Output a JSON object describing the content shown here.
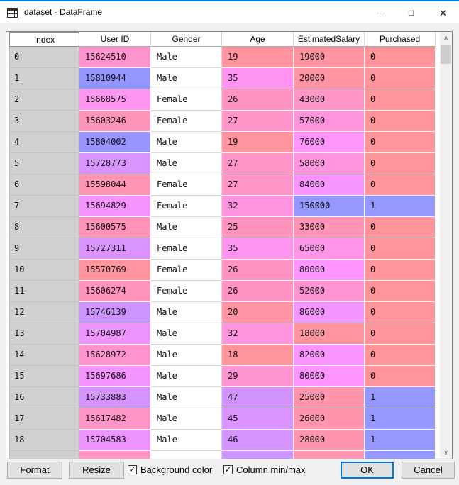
{
  "window": {
    "title": "dataset - DataFrame",
    "controls": {
      "minimize_glyph": "−",
      "maximize_glyph": "□",
      "close_glyph": "✕"
    }
  },
  "colors": {
    "accent_blue": "#0078d7",
    "index_column_bg": "#d0d0d0",
    "min_value_bg": "#FF949A",
    "max_value_bg": "#9498FF"
  },
  "icons": {
    "app_icon": "table-grid-icon",
    "checkmark": "✓",
    "scroll_up_glyph": "∧",
    "scroll_down_glyph": "∨"
  },
  "table": {
    "columns": [
      "Index",
      "User ID",
      "Gender",
      "Age",
      "EstimatedSalary",
      "Purchased"
    ],
    "rows": [
      {
        "index": "0",
        "cells": [
          {
            "text": "15624510",
            "bg": "#FF94CC"
          },
          {
            "text": "Male",
            "bg": "#FFFFFF"
          },
          {
            "text": "19",
            "bg": "#FF949F"
          },
          {
            "text": "19000",
            "bg": "#FF94A1"
          },
          {
            "text": "0",
            "bg": "#FF949A"
          }
        ]
      },
      {
        "index": "1",
        "cells": [
          {
            "text": "15810944",
            "bg": "#9495FF"
          },
          {
            "text": "Male",
            "bg": "#FFFFFF"
          },
          {
            "text": "35",
            "bg": "#FF94F0"
          },
          {
            "text": "20000",
            "bg": "#FF94A2"
          },
          {
            "text": "0",
            "bg": "#FF949A"
          }
        ]
      },
      {
        "index": "2",
        "cells": [
          {
            "text": "15668575",
            "bg": "#FF94F1"
          },
          {
            "text": "Female",
            "bg": "#FFFFFF"
          },
          {
            "text": "26",
            "bg": "#FF94C3"
          },
          {
            "text": "43000",
            "bg": "#FF94C6"
          },
          {
            "text": "0",
            "bg": "#FF949A"
          }
        ]
      },
      {
        "index": "3",
        "cells": [
          {
            "text": "15603246",
            "bg": "#FF94BA"
          },
          {
            "text": "Female",
            "bg": "#FFFFFF"
          },
          {
            "text": "27",
            "bg": "#FF94C8"
          },
          {
            "text": "57000",
            "bg": "#FF94DC"
          },
          {
            "text": "0",
            "bg": "#FF949A"
          }
        ]
      },
      {
        "index": "4",
        "cells": [
          {
            "text": "15804002",
            "bg": "#9994FF"
          },
          {
            "text": "Male",
            "bg": "#FFFFFF"
          },
          {
            "text": "19",
            "bg": "#FF949F"
          },
          {
            "text": "76000",
            "bg": "#FF94FA"
          },
          {
            "text": "0",
            "bg": "#FF949A"
          }
        ]
      },
      {
        "index": "5",
        "cells": [
          {
            "text": "15728773",
            "bg": "#D994FF"
          },
          {
            "text": "Male",
            "bg": "#FFFFFF"
          },
          {
            "text": "27",
            "bg": "#FF94C8"
          },
          {
            "text": "58000",
            "bg": "#FF94DE"
          },
          {
            "text": "0",
            "bg": "#FF949A"
          }
        ]
      },
      {
        "index": "6",
        "cells": [
          {
            "text": "15598044",
            "bg": "#FF94B5"
          },
          {
            "text": "Female",
            "bg": "#FFFFFF"
          },
          {
            "text": "27",
            "bg": "#FF94C8"
          },
          {
            "text": "84000",
            "bg": "#F794FF"
          },
          {
            "text": "0",
            "bg": "#FF949A"
          }
        ]
      },
      {
        "index": "7",
        "cells": [
          {
            "text": "15694829",
            "bg": "#F694FF"
          },
          {
            "text": "Female",
            "bg": "#FFFFFF"
          },
          {
            "text": "32",
            "bg": "#FF94E1"
          },
          {
            "text": "150000",
            "bg": "#9498FF"
          },
          {
            "text": "1",
            "bg": "#9498FF"
          }
        ]
      },
      {
        "index": "8",
        "cells": [
          {
            "text": "15600575",
            "bg": "#FF94B7"
          },
          {
            "text": "Male",
            "bg": "#FFFFFF"
          },
          {
            "text": "25",
            "bg": "#FF94BE"
          },
          {
            "text": "33000",
            "bg": "#FF94B7"
          },
          {
            "text": "0",
            "bg": "#FF949A"
          }
        ]
      },
      {
        "index": "9",
        "cells": [
          {
            "text": "15727311",
            "bg": "#DB94FF"
          },
          {
            "text": "Female",
            "bg": "#FFFFFF"
          },
          {
            "text": "35",
            "bg": "#FF94F0"
          },
          {
            "text": "65000",
            "bg": "#FF94E9"
          },
          {
            "text": "0",
            "bg": "#FF949A"
          }
        ]
      },
      {
        "index": "10",
        "cells": [
          {
            "text": "15570769",
            "bg": "#FF949E"
          },
          {
            "text": "Female",
            "bg": "#FFFFFF"
          },
          {
            "text": "26",
            "bg": "#FF94C3"
          },
          {
            "text": "80000",
            "bg": "#FE94FF"
          },
          {
            "text": "0",
            "bg": "#FF949A"
          }
        ]
      },
      {
        "index": "11",
        "cells": [
          {
            "text": "15606274",
            "bg": "#FF94BC"
          },
          {
            "text": "Female",
            "bg": "#FFFFFF"
          },
          {
            "text": "26",
            "bg": "#FF94C3"
          },
          {
            "text": "52000",
            "bg": "#FF94D4"
          },
          {
            "text": "0",
            "bg": "#FF949A"
          }
        ]
      },
      {
        "index": "12",
        "cells": [
          {
            "text": "15746139",
            "bg": "#CB94FF"
          },
          {
            "text": "Male",
            "bg": "#FFFFFF"
          },
          {
            "text": "20",
            "bg": "#FF94A4"
          },
          {
            "text": "86000",
            "bg": "#F494FF"
          },
          {
            "text": "0",
            "bg": "#FF949A"
          }
        ]
      },
      {
        "index": "13",
        "cells": [
          {
            "text": "15704987",
            "bg": "#EE94FF"
          },
          {
            "text": "Male",
            "bg": "#FFFFFF"
          },
          {
            "text": "32",
            "bg": "#FF94E1"
          },
          {
            "text": "18000",
            "bg": "#FF949F"
          },
          {
            "text": "0",
            "bg": "#FF949A"
          }
        ]
      },
      {
        "index": "14",
        "cells": [
          {
            "text": "15628972",
            "bg": "#FF94CF"
          },
          {
            "text": "Male",
            "bg": "#FFFFFF"
          },
          {
            "text": "18",
            "bg": "#FF949A"
          },
          {
            "text": "82000",
            "bg": "#FA94FF"
          },
          {
            "text": "0",
            "bg": "#FF949A"
          }
        ]
      },
      {
        "index": "15",
        "cells": [
          {
            "text": "15697686",
            "bg": "#F494FF"
          },
          {
            "text": "Male",
            "bg": "#FFFFFF"
          },
          {
            "text": "29",
            "bg": "#FF94D2"
          },
          {
            "text": "80000",
            "bg": "#FE94FF"
          },
          {
            "text": "0",
            "bg": "#FF949A"
          }
        ]
      },
      {
        "index": "16",
        "cells": [
          {
            "text": "15733883",
            "bg": "#D594FF"
          },
          {
            "text": "Male",
            "bg": "#FFFFFF"
          },
          {
            "text": "47",
            "bg": "#D194FF"
          },
          {
            "text": "25000",
            "bg": "#FF94AA"
          },
          {
            "text": "1",
            "bg": "#9498FF"
          }
        ]
      },
      {
        "index": "17",
        "cells": [
          {
            "text": "15617482",
            "bg": "#FF94C6"
          },
          {
            "text": "Male",
            "bg": "#FFFFFF"
          },
          {
            "text": "45",
            "bg": "#DB94FF"
          },
          {
            "text": "26000",
            "bg": "#FF94AC"
          },
          {
            "text": "1",
            "bg": "#9498FF"
          }
        ]
      },
      {
        "index": "18",
        "cells": [
          {
            "text": "15704583",
            "bg": "#EE94FF"
          },
          {
            "text": "Male",
            "bg": "#FFFFFF"
          },
          {
            "text": "46",
            "bg": "#D694FF"
          },
          {
            "text": "28000",
            "bg": "#FF94AF"
          },
          {
            "text": "1",
            "bg": "#9498FF"
          }
        ]
      },
      {
        "index": "",
        "partial": true,
        "cells": [
          {
            "text": "",
            "bg": "#FF94C9"
          },
          {
            "text": "",
            "bg": "#FFFFFF"
          },
          {
            "text": "",
            "bg": "#CC94FF"
          },
          {
            "text": "",
            "bg": "#FF94B0"
          },
          {
            "text": "",
            "bg": "#9498FF"
          }
        ]
      }
    ]
  },
  "footer": {
    "format_label": "Format",
    "resize_label": "Resize",
    "background_color_checkbox": {
      "label": "Background color",
      "checked": true
    },
    "column_minmax_checkbox": {
      "label": "Column min/max",
      "checked": true
    },
    "ok_label": "OK",
    "cancel_label": "Cancel"
  }
}
